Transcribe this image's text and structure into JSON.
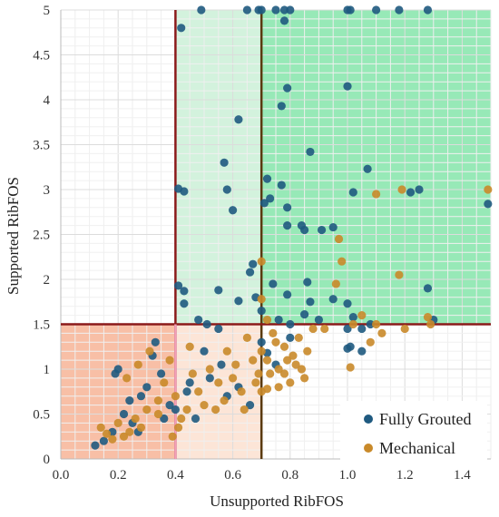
{
  "chart_data": {
    "type": "scatter",
    "xlabel": "Unsupported RibFOS",
    "ylabel": "Supported RibFOS",
    "xlim": [
      0,
      1.5
    ],
    "ylim": [
      0,
      5
    ],
    "x_ticks": [
      "0.0",
      "0.2",
      "0.4",
      "0.6",
      "0.8",
      "1.0",
      "1.2",
      "1.4"
    ],
    "y_ticks": [
      "0",
      "0.5",
      "1",
      "1.5",
      "2",
      "2.5",
      "3",
      "3.5",
      "4",
      "4.5",
      "5"
    ],
    "grid": true,
    "legend_position": "bottom-right",
    "thresholds": {
      "x_lines": [
        0.4,
        0.7
      ],
      "y_line": 1.5
    },
    "zones": [
      {
        "x": [
          0.7,
          1.5
        ],
        "y": [
          1.5,
          5
        ],
        "color": "#2fd36f",
        "opacity": 0.5
      },
      {
        "x": [
          0.4,
          0.7
        ],
        "y": [
          1.5,
          5
        ],
        "color": "#9ee3b4",
        "opacity": 0.45
      },
      {
        "x": [
          0.0,
          0.4
        ],
        "y": [
          0,
          1.5
        ],
        "color": "#f28a5c",
        "opacity": 0.55
      },
      {
        "x": [
          0.4,
          0.7
        ],
        "y": [
          0,
          1.5
        ],
        "color": "#f9c6a6",
        "opacity": 0.45
      }
    ],
    "series": [
      {
        "name": "Fully Grouted",
        "color": "#1f5a80",
        "points": [
          [
            0.49,
            5.0
          ],
          [
            0.65,
            5.0
          ],
          [
            0.69,
            5.0
          ],
          [
            0.7,
            5.0
          ],
          [
            0.75,
            5.0
          ],
          [
            0.78,
            5.0
          ],
          [
            0.8,
            5.0
          ],
          [
            1.0,
            5.0
          ],
          [
            1.01,
            5.0
          ],
          [
            1.1,
            5.0
          ],
          [
            1.18,
            5.0
          ],
          [
            1.28,
            5.0
          ],
          [
            0.42,
            4.8
          ],
          [
            0.78,
            4.88
          ],
          [
            0.79,
            4.13
          ],
          [
            1.0,
            4.15
          ],
          [
            0.77,
            3.93
          ],
          [
            0.62,
            3.78
          ],
          [
            0.57,
            3.3
          ],
          [
            0.72,
            3.12
          ],
          [
            0.87,
            3.42
          ],
          [
            1.07,
            3.23
          ],
          [
            0.41,
            3.01
          ],
          [
            0.43,
            2.98
          ],
          [
            0.58,
            3.0
          ],
          [
            0.71,
            2.85
          ],
          [
            0.73,
            2.9
          ],
          [
            0.77,
            3.05
          ],
          [
            0.79,
            2.8
          ],
          [
            1.02,
            2.97
          ],
          [
            1.22,
            2.97
          ],
          [
            1.25,
            3.0
          ],
          [
            0.6,
            2.77
          ],
          [
            0.79,
            2.6
          ],
          [
            0.84,
            2.6
          ],
          [
            0.85,
            2.55
          ],
          [
            0.91,
            2.55
          ],
          [
            0.95,
            2.58
          ],
          [
            1.49,
            2.84
          ],
          [
            0.67,
            2.17
          ],
          [
            0.66,
            2.08
          ],
          [
            0.41,
            1.93
          ],
          [
            0.43,
            1.87
          ],
          [
            0.55,
            1.88
          ],
          [
            0.68,
            1.8
          ],
          [
            0.74,
            1.95
          ],
          [
            0.79,
            1.83
          ],
          [
            0.86,
            1.97
          ],
          [
            0.87,
            1.75
          ],
          [
            0.95,
            1.78
          ],
          [
            1.0,
            1.73
          ],
          [
            1.02,
            1.58
          ],
          [
            1.28,
            1.9
          ],
          [
            0.43,
            1.73
          ],
          [
            0.48,
            1.55
          ],
          [
            0.62,
            1.76
          ],
          [
            0.7,
            1.65
          ],
          [
            0.76,
            1.55
          ],
          [
            0.85,
            1.61
          ],
          [
            0.9,
            1.55
          ],
          [
            1.3,
            1.55
          ],
          [
            0.7,
            1.3
          ],
          [
            0.72,
            1.18
          ],
          [
            0.75,
            1.05
          ],
          [
            0.8,
            1.35
          ],
          [
            1.0,
            1.23
          ],
          [
            1.01,
            1.25
          ],
          [
            1.05,
            1.2
          ],
          [
            1.08,
            1.5
          ],
          [
            1.0,
            1.45
          ],
          [
            1.05,
            1.45
          ],
          [
            0.8,
            1.5
          ],
          [
            0.51,
            1.5
          ],
          [
            0.55,
            1.45
          ],
          [
            0.35,
            0.95
          ],
          [
            0.32,
            1.15
          ],
          [
            0.28,
            0.7
          ],
          [
            0.22,
            0.5
          ],
          [
            0.25,
            0.4
          ],
          [
            0.18,
            0.3
          ],
          [
            0.15,
            0.2
          ],
          [
            0.33,
            1.3
          ],
          [
            0.38,
            0.6
          ],
          [
            0.45,
            0.85
          ],
          [
            0.5,
            1.2
          ],
          [
            0.52,
            0.9
          ],
          [
            0.56,
            1.05
          ],
          [
            0.58,
            0.7
          ],
          [
            0.62,
            0.8
          ],
          [
            0.66,
            0.6
          ],
          [
            0.47,
            0.45
          ],
          [
            0.44,
            0.75
          ],
          [
            0.4,
            0.55
          ],
          [
            0.3,
            0.8
          ],
          [
            0.2,
            1.0
          ],
          [
            0.19,
            0.95
          ],
          [
            0.24,
            0.65
          ],
          [
            0.27,
            0.3
          ],
          [
            0.12,
            0.15
          ],
          [
            0.36,
            0.45
          ]
        ]
      },
      {
        "name": "Mechanical",
        "color": "#c98a2a",
        "points": [
          [
            1.49,
            3.0
          ],
          [
            1.19,
            3.0
          ],
          [
            1.1,
            2.95
          ],
          [
            0.97,
            2.45
          ],
          [
            0.98,
            2.2
          ],
          [
            0.7,
            2.2
          ],
          [
            1.18,
            2.05
          ],
          [
            0.96,
            1.95
          ],
          [
            0.7,
            1.78
          ],
          [
            0.72,
            1.55
          ],
          [
            1.05,
            1.6
          ],
          [
            1.28,
            1.58
          ],
          [
            1.29,
            1.5
          ],
          [
            1.02,
            1.5
          ],
          [
            1.1,
            1.5
          ],
          [
            1.2,
            1.45
          ],
          [
            0.88,
            1.45
          ],
          [
            0.7,
            1.2
          ],
          [
            0.72,
            1.1
          ],
          [
            0.75,
            1.3
          ],
          [
            0.76,
            1.0
          ],
          [
            0.78,
            0.95
          ],
          [
            0.8,
            0.85
          ],
          [
            0.81,
            1.15
          ],
          [
            0.82,
            1.05
          ],
          [
            0.83,
            1.35
          ],
          [
            0.84,
            1.0
          ],
          [
            0.85,
            0.9
          ],
          [
            0.86,
            1.2
          ],
          [
            0.72,
            0.78
          ],
          [
            0.7,
            0.75
          ],
          [
            0.73,
            0.95
          ],
          [
            0.78,
            1.25
          ],
          [
            0.79,
            1.1
          ],
          [
            1.01,
            1.02
          ],
          [
            1.08,
            1.3
          ],
          [
            1.12,
            1.4
          ],
          [
            0.92,
            1.45
          ],
          [
            0.52,
            1.0
          ],
          [
            0.55,
            0.85
          ],
          [
            0.58,
            1.2
          ],
          [
            0.48,
            0.75
          ],
          [
            0.44,
            0.55
          ],
          [
            0.42,
            0.45
          ],
          [
            0.46,
            0.95
          ],
          [
            0.5,
            0.6
          ],
          [
            0.6,
            0.9
          ],
          [
            0.63,
            0.75
          ],
          [
            0.65,
            1.35
          ],
          [
            0.68,
            0.85
          ],
          [
            0.38,
            1.1
          ],
          [
            0.36,
            0.85
          ],
          [
            0.34,
            0.5
          ],
          [
            0.3,
            0.55
          ],
          [
            0.28,
            0.35
          ],
          [
            0.26,
            0.45
          ],
          [
            0.24,
            0.3
          ],
          [
            0.22,
            0.25
          ],
          [
            0.2,
            0.4
          ],
          [
            0.18,
            0.22
          ],
          [
            0.16,
            0.28
          ],
          [
            0.14,
            0.35
          ],
          [
            0.23,
            0.9
          ],
          [
            0.27,
            1.05
          ],
          [
            0.31,
            1.2
          ],
          [
            0.34,
            0.65
          ],
          [
            0.4,
            0.7
          ],
          [
            0.41,
            0.35
          ],
          [
            0.45,
            1.25
          ],
          [
            0.54,
            0.55
          ],
          [
            0.57,
            0.65
          ],
          [
            0.61,
            1.05
          ],
          [
            0.64,
            0.55
          ],
          [
            0.67,
            1.1
          ],
          [
            0.74,
            1.4
          ],
          [
            0.76,
            0.8
          ],
          [
            0.69,
            0.95
          ],
          [
            0.39,
            0.25
          ]
        ]
      }
    ]
  }
}
